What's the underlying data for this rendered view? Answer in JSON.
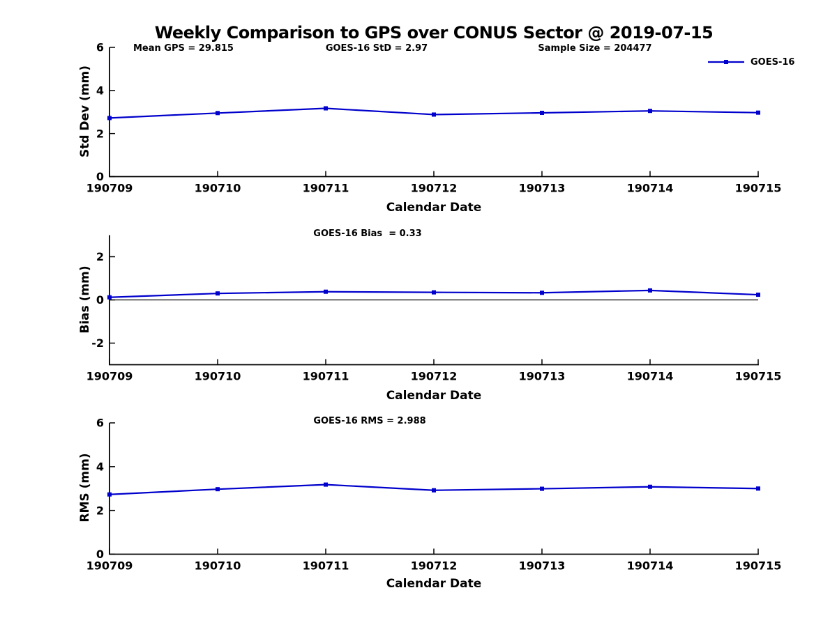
{
  "figure": {
    "title": "Weekly Comparison to GPS over CONUS Sector @ 2019-07-15",
    "background": "#ffffff",
    "line_color": "#0000cc",
    "axis_color": "#000000"
  },
  "header_annotations": {
    "mean_gps": "Mean GPS = 29.815",
    "std": "GOES-16 StD = 2.97",
    "sample_size": "Sample Size = 204477"
  },
  "legend": {
    "label": "GOES-16",
    "color": "#0000cc",
    "marker": "square"
  },
  "chart_data": [
    {
      "type": "line",
      "name": "std-dev",
      "title": "",
      "xlabel": "Calendar Date",
      "ylabel": "Std Dev (mm)",
      "ylim": [
        0,
        6
      ],
      "yticks": [
        0,
        2,
        4,
        6
      ],
      "grid": false,
      "legend_position": "top-right",
      "categories": [
        "190709",
        "190710",
        "190711",
        "190712",
        "190713",
        "190714",
        "190715"
      ],
      "series": [
        {
          "name": "GOES-16",
          "color": "#0000cc",
          "values": [
            2.72,
            2.95,
            3.17,
            2.88,
            2.96,
            3.05,
            2.97
          ]
        }
      ],
      "annotations": [
        "Mean GPS = 29.815",
        "GOES-16 StD = 2.97",
        "Sample Size = 204477"
      ]
    },
    {
      "type": "line",
      "name": "bias",
      "title": "",
      "xlabel": "Calendar Date",
      "ylabel": "Bias (mm)",
      "ylim": [
        -3,
        3
      ],
      "yticks": [
        -2,
        0,
        2
      ],
      "zero_line": true,
      "grid": false,
      "categories": [
        "190709",
        "190710",
        "190711",
        "190712",
        "190713",
        "190714",
        "190715"
      ],
      "series": [
        {
          "name": "GOES-16",
          "color": "#0000cc",
          "values": [
            0.12,
            0.3,
            0.38,
            0.35,
            0.33,
            0.44,
            0.24
          ]
        }
      ],
      "annotation": "GOES-16 Bias  = 0.33"
    },
    {
      "type": "line",
      "name": "rms",
      "title": "",
      "xlabel": "Calendar Date",
      "ylabel": "RMS (mm)",
      "ylim": [
        0,
        6
      ],
      "yticks": [
        0,
        2,
        4,
        6
      ],
      "grid": false,
      "categories": [
        "190709",
        "190710",
        "190711",
        "190712",
        "190713",
        "190714",
        "190715"
      ],
      "series": [
        {
          "name": "GOES-16",
          "color": "#0000cc",
          "values": [
            2.73,
            2.97,
            3.18,
            2.92,
            2.99,
            3.08,
            3.0
          ]
        }
      ],
      "annotation": "GOES-16 RMS = 2.988"
    }
  ]
}
